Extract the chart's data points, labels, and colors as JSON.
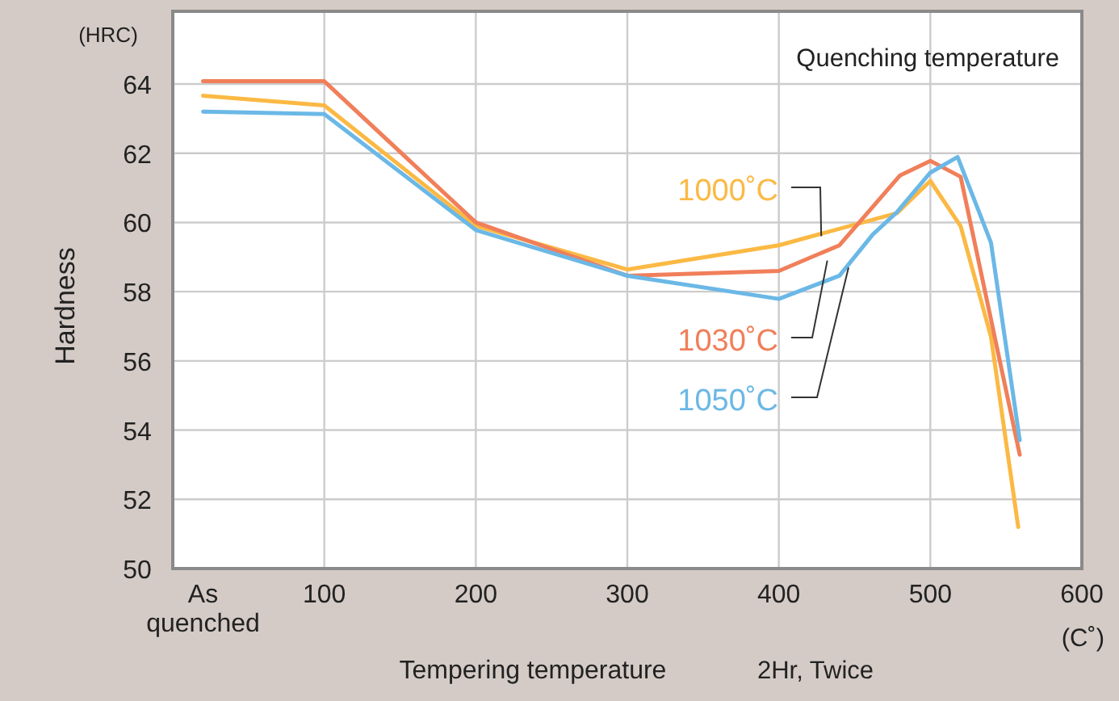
{
  "chart_data": {
    "type": "line",
    "xlabel": "Tempering temperature",
    "ylabel": "Hardness",
    "legend_title": "Quenching temperature",
    "annotations": [
      "(HRC)",
      "(C˚)",
      "2Hr, Twice"
    ],
    "xlim": [
      0,
      600
    ],
    "xticks": [
      {
        "value": 20,
        "label": "As quenched"
      },
      100,
      200,
      300,
      400,
      500,
      600
    ],
    "ylim": [
      50,
      66.1
    ],
    "yticks": [
      50,
      52,
      54,
      56,
      58,
      60,
      62,
      64
    ],
    "grid": true,
    "marker": "none",
    "line_style": "solid",
    "series": [
      {
        "name": "1000˚C",
        "color": "#fbb944",
        "x": [
          20,
          100,
          200,
          300,
          400,
          478,
          500,
          520,
          540,
          558
        ],
        "values": [
          63.66,
          63.38,
          59.9,
          58.64,
          59.34,
          60.27,
          61.2,
          59.89,
          56.7,
          51.2
        ]
      },
      {
        "name": "1030˚C",
        "color": "#f07f5a",
        "x": [
          20,
          100,
          200,
          300,
          400,
          440,
          480,
          500,
          520,
          559
        ],
        "values": [
          64.08,
          64.08,
          60.0,
          58.46,
          58.6,
          59.34,
          61.36,
          61.78,
          61.32,
          53.29
        ]
      },
      {
        "name": "1050˚C",
        "color": "#6bb8e6",
        "x": [
          20,
          100,
          200,
          300,
          400,
          440,
          462,
          478,
          500,
          518,
          540,
          559
        ],
        "values": [
          63.2,
          63.13,
          59.78,
          58.46,
          57.79,
          58.46,
          59.65,
          60.3,
          61.44,
          61.89,
          59.42,
          53.71
        ]
      }
    ]
  }
}
